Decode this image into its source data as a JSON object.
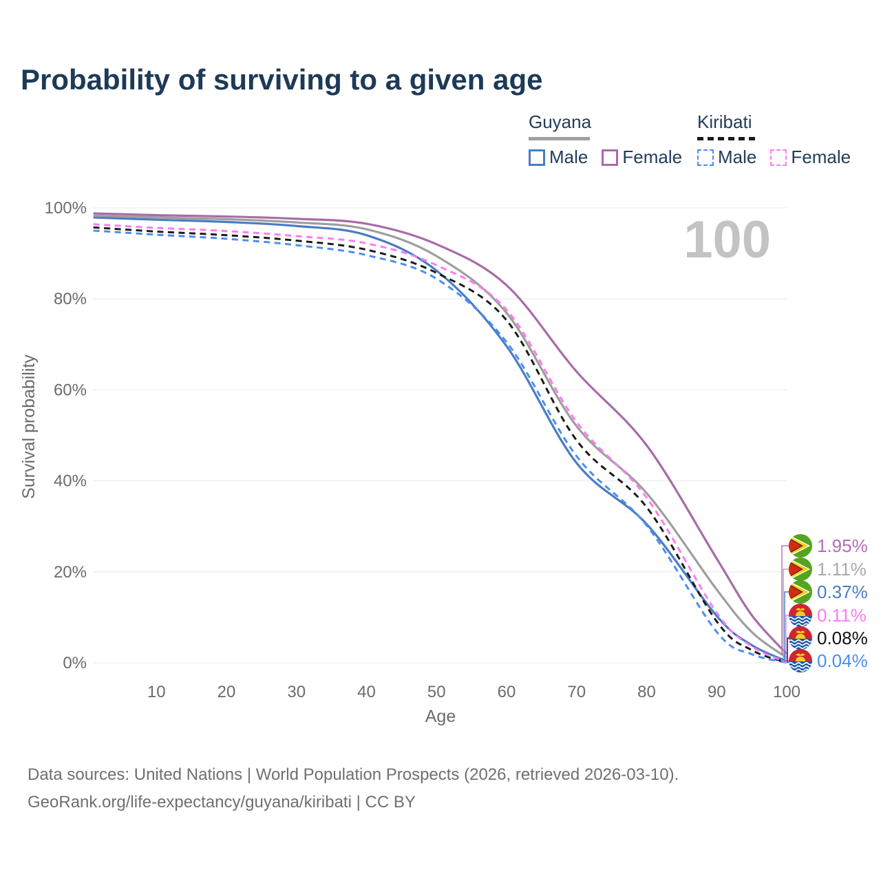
{
  "title": "Probability of surviving to a given age",
  "watermark": "100",
  "legend": {
    "groups": [
      {
        "country": "Guyana",
        "underline_style": "solid",
        "underline_color": "#a0a0a0",
        "items": [
          {
            "label": "Male",
            "color": "#4a7cc2",
            "dashed": false
          },
          {
            "label": "Female",
            "color": "#ab68ad",
            "dashed": false
          }
        ]
      },
      {
        "country": "Kiribati",
        "underline_style": "dashed",
        "underline_color": "#1a1a1a",
        "items": [
          {
            "label": "Male",
            "color": "#4b8df2",
            "dashed": true
          },
          {
            "label": "Female",
            "color": "#fb7cf3",
            "dashed": true
          }
        ]
      }
    ]
  },
  "chart_data": {
    "type": "line",
    "title": "Probability of surviving to a given age",
    "xlabel": "Age",
    "ylabel": "Survival probability",
    "xlim": [
      1,
      100
    ],
    "ylim": [
      0,
      100
    ],
    "x_ticks": [
      10,
      20,
      30,
      40,
      50,
      60,
      70,
      80,
      90,
      100
    ],
    "y_ticks": [
      {
        "value": 0,
        "label": "0%"
      },
      {
        "value": 20,
        "label": "20%"
      },
      {
        "value": 40,
        "label": "40%"
      },
      {
        "value": 60,
        "label": "60%"
      },
      {
        "value": 80,
        "label": "80%"
      },
      {
        "value": 100,
        "label": "100%"
      }
    ],
    "grid": "horizontal",
    "legend_position": "top-right",
    "x": [
      1,
      10,
      20,
      30,
      40,
      50,
      60,
      70,
      80,
      90,
      95,
      100
    ],
    "series": [
      {
        "key": "guyana_male",
        "name": "Guyana Male",
        "country": "Guyana",
        "sex": "Male",
        "style": "solid",
        "color": "#4a7cc2",
        "values": [
          97.9,
          97.4,
          96.9,
          96.0,
          94.0,
          86.2,
          69.6,
          43.9,
          30.5,
          10.3,
          3.9,
          0.37
        ]
      },
      {
        "key": "guyana_all",
        "name": "Guyana Both sexes",
        "country": "Guyana",
        "sex": "Both",
        "style": "solid",
        "color": "#9e9e9e",
        "values": [
          98.3,
          97.9,
          97.5,
          96.8,
          95.3,
          89.4,
          76.9,
          52.0,
          37.3,
          16.1,
          6.8,
          1.11
        ]
      },
      {
        "key": "guyana_female",
        "name": "Guyana Female",
        "country": "Guyana",
        "sex": "Female",
        "style": "solid",
        "color": "#a86ba8",
        "values": [
          98.8,
          98.4,
          98.1,
          97.6,
          96.5,
          92.0,
          83.0,
          64.0,
          47.8,
          22.9,
          10.5,
          1.95
        ]
      },
      {
        "key": "kiribati_male",
        "name": "Kiribati Male",
        "country": "Kiribati",
        "sex": "Male",
        "style": "dashed",
        "color": "#4b8df2",
        "values": [
          95.0,
          94.1,
          93.2,
          91.8,
          89.6,
          84.4,
          70.5,
          45.4,
          30.2,
          6.8,
          1.9,
          0.04
        ]
      },
      {
        "key": "kiribati_all",
        "name": "Kiribati Both sexes",
        "country": "Kiribati",
        "sex": "Both",
        "style": "dashed",
        "color": "#1b1b1b",
        "values": [
          95.7,
          94.8,
          94.0,
          92.8,
          90.8,
          85.7,
          75.3,
          48.9,
          34.2,
          9.1,
          2.8,
          0.08
        ]
      },
      {
        "key": "kiribati_female",
        "name": "Kiribati Female",
        "country": "Kiribati",
        "sex": "Female",
        "style": "dashed",
        "color": "#fb7cf3",
        "values": [
          96.4,
          95.6,
          94.9,
          93.8,
          92.2,
          87.4,
          77.6,
          52.9,
          36.3,
          11.0,
          3.6,
          0.11
        ]
      }
    ]
  },
  "end_labels": [
    {
      "flag": "guyana",
      "value": "1.95%",
      "color": "#b46cb4",
      "series": "guyana_female"
    },
    {
      "flag": "guyana",
      "value": "1.11%",
      "color": "#a9a9a9",
      "series": "guyana_all"
    },
    {
      "flag": "guyana",
      "value": "0.37%",
      "color": "#4a7cc2",
      "series": "guyana_male"
    },
    {
      "flag": "kiribati",
      "value": "0.11%",
      "color": "#fb7cf3",
      "series": "kiribati_female"
    },
    {
      "flag": "kiribati",
      "value": "0.08%",
      "color": "#111111",
      "series": "kiribati_all"
    },
    {
      "flag": "kiribati",
      "value": "0.04%",
      "color": "#4b8df2",
      "series": "kiribati_male"
    }
  ],
  "footer": {
    "line1": "Data sources: United Nations | World Population Prospects (2026, retrieved 2026-03-10).",
    "line2": "GeoRank.org/life-expectancy/guyana/kiribati | CC BY"
  }
}
